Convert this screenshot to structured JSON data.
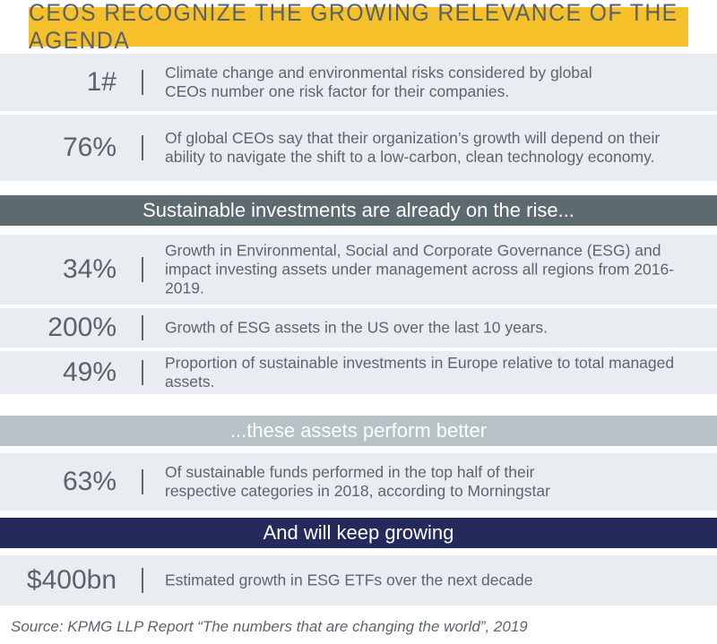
{
  "title": "CEOS RECOGNIZE THE GROWING RELEVANCE OF THE AGENDA",
  "sections": [
    "Sustainable investments are already on the rise...",
    "...these assets perform better",
    "And will keep growing"
  ],
  "rows": [
    {
      "stat": "1#",
      "desc": "Climate change and environmental risks considered by global CEOs number one risk factor for their companies."
    },
    {
      "stat": "76%",
      "desc": "Of global CEOs say that their organization’s growth will depend on their ability to navigate the shift to a low-carbon, clean technology economy."
    },
    {
      "stat": "34%",
      "desc": "Growth in Environmental, Social and Corporate Governance (ESG) and impact investing assets under management across all regions from 2016-2019."
    },
    {
      "stat": "200%",
      "desc": "Growth of ESG assets in the US over the last 10 years."
    },
    {
      "stat": "49%",
      "desc": "Proportion of sustainable investments in Europe relative to total managed assets."
    },
    {
      "stat": "63%",
      "desc": "Of sustainable funds performed in the top half of their respective categories in 2018, according to Morningstar"
    },
    {
      "stat": "$400bn",
      "desc": "Estimated growth in ESG ETFs over the next decade"
    }
  ],
  "source": "Source: KPMG LLP Report “The numbers that are changing the world”, 2019",
  "colors": {
    "title_bg": "#f5c02a",
    "section1_bg": "#5d6a70",
    "section2_bg": "#b7c1c6",
    "section3_bg": "#242a5c",
    "row_bg": "#e9edf1",
    "text": "#5b6570"
  }
}
